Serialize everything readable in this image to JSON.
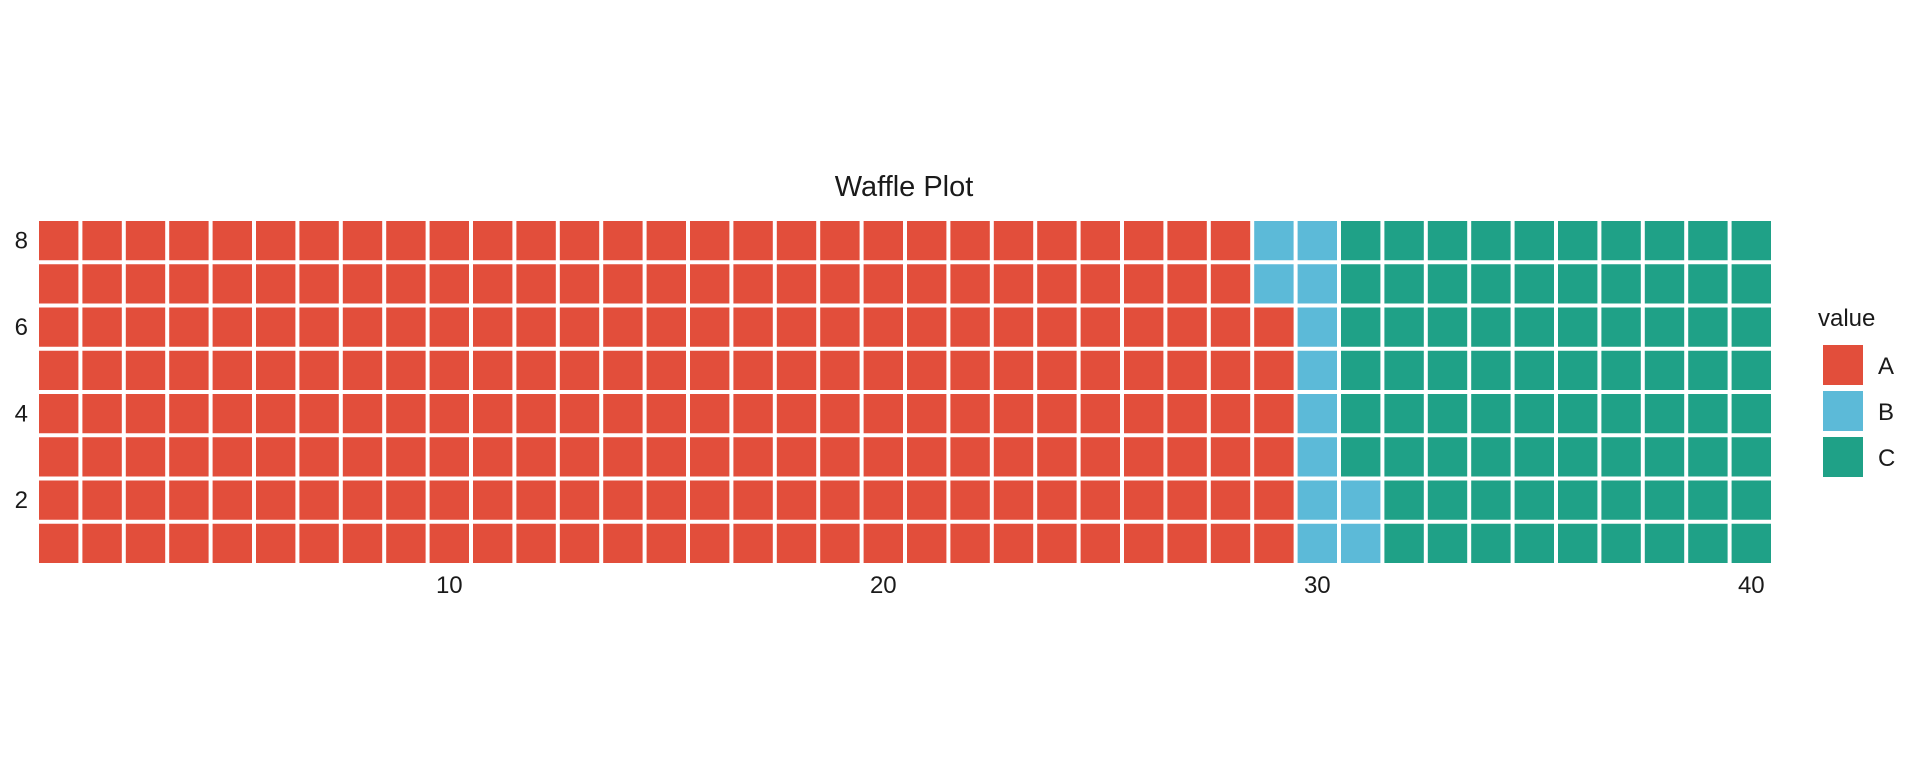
{
  "chart_data": {
    "type": "waffle",
    "title": "Waffle Plot",
    "xlabel": "",
    "ylabel": "",
    "columns": 40,
    "rows": 8,
    "xlim": [
      1,
      40
    ],
    "ylim": [
      1,
      8
    ],
    "x_ticks": [
      10,
      20,
      30,
      40
    ],
    "y_ticks": [
      2,
      4,
      6,
      8
    ],
    "grid": false,
    "fill_order": "column-wise, bottom to top",
    "legend": {
      "title": "value",
      "placement": "right",
      "entries": [
        {
          "label": "A",
          "color": "#E24E3B"
        },
        {
          "label": "B",
          "color": "#5CBAD8"
        },
        {
          "label": "C",
          "color": "#1FA187"
        }
      ]
    },
    "series": [
      {
        "name": "A",
        "count": 230,
        "color": "#E24E3B"
      },
      {
        "name": "B",
        "count": 12,
        "color": "#5CBAD8"
      },
      {
        "name": "C",
        "count": 78,
        "color": "#1FA187"
      }
    ]
  }
}
